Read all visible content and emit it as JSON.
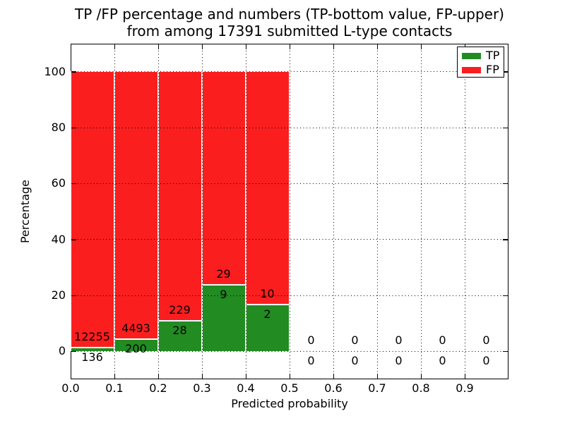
{
  "chart_data": {
    "type": "bar",
    "stacked": true,
    "title_line1": "TP /FP percentage and numbers (TP-bottom value, FP-upper)",
    "title_line2": "from among 17391 submitted L-type contacts",
    "xlabel": "Predicted probability",
    "ylabel": "Percentage",
    "total_submitted": 17391,
    "xlim": [
      0,
      1.0
    ],
    "ylim": [
      -10,
      110
    ],
    "grid": true,
    "grid_style": "dotted",
    "grid_above_bars": true,
    "legend_position": "upper right",
    "x_tick_values": [
      0.0,
      0.1,
      0.2,
      0.3,
      0.4,
      0.5,
      0.6,
      0.7,
      0.8,
      0.9
    ],
    "x_tick_labels": [
      "0.0",
      "0.1",
      "0.2",
      "0.3",
      "0.4",
      "0.5",
      "0.6",
      "0.7",
      "0.8",
      "0.9"
    ],
    "y_tick_values": [
      0,
      20,
      40,
      60,
      80,
      100
    ],
    "y_tick_labels": [
      "0",
      "20",
      "40",
      "60",
      "80",
      "100"
    ],
    "series": [
      {
        "name": "TP",
        "color": "#228b22"
      },
      {
        "name": "FP",
        "color": "#fb1e1e"
      }
    ],
    "legend": [
      {
        "label": "TP",
        "color": "#228b22"
      },
      {
        "label": "FP",
        "color": "#fb1e1e"
      }
    ],
    "bins": [
      {
        "range": [
          0.0,
          0.1
        ],
        "tp": 136,
        "fp": 12255,
        "tp_pct": 1.1,
        "fp_pct": 98.9
      },
      {
        "range": [
          0.1,
          0.2
        ],
        "tp": 200,
        "fp": 4493,
        "tp_pct": 4.26,
        "fp_pct": 95.74
      },
      {
        "range": [
          0.2,
          0.3
        ],
        "tp": 28,
        "fp": 229,
        "tp_pct": 10.89,
        "fp_pct": 89.11
      },
      {
        "range": [
          0.3,
          0.4
        ],
        "tp": 9,
        "fp": 29,
        "tp_pct": 23.68,
        "fp_pct": 76.32
      },
      {
        "range": [
          0.4,
          0.5
        ],
        "tp": 2,
        "fp": 10,
        "tp_pct": 16.67,
        "fp_pct": 83.33
      },
      {
        "range": [
          0.5,
          0.6
        ],
        "tp": 0,
        "fp": 0,
        "tp_pct": 0,
        "fp_pct": 0
      },
      {
        "range": [
          0.6,
          0.7
        ],
        "tp": 0,
        "fp": 0,
        "tp_pct": 0,
        "fp_pct": 0
      },
      {
        "range": [
          0.7,
          0.8
        ],
        "tp": 0,
        "fp": 0,
        "tp_pct": 0,
        "fp_pct": 0
      },
      {
        "range": [
          0.8,
          0.9
        ],
        "tp": 0,
        "fp": 0,
        "tp_pct": 0,
        "fp_pct": 0
      },
      {
        "range": [
          0.9,
          1.0
        ],
        "tp": 0,
        "fp": 0,
        "tp_pct": 0,
        "fp_pct": 0
      }
    ]
  },
  "colors": {
    "tp_green": "#228b22",
    "fp_red": "#fb1e1e",
    "grid": "#000000",
    "background": "#ffffff",
    "bar_edge": "#ffffff"
  }
}
